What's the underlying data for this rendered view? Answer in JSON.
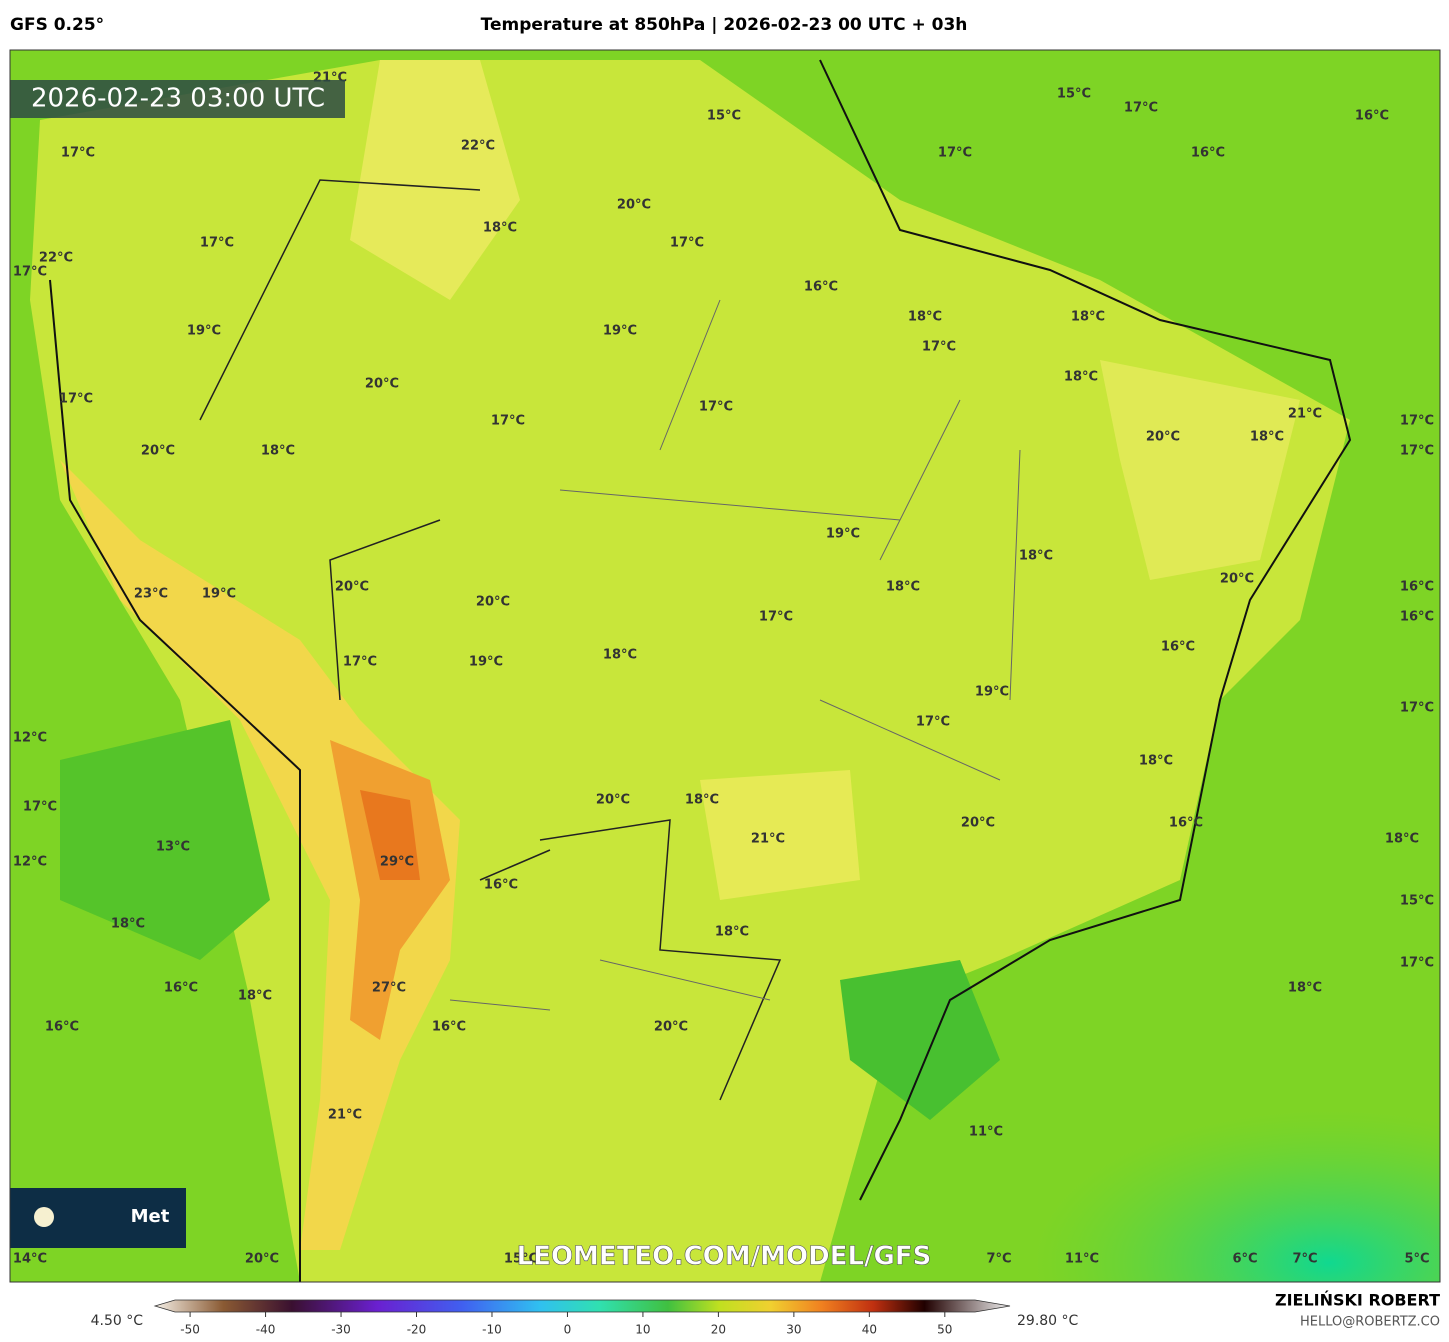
{
  "header": {
    "model": "GFS 0.25°",
    "title": "Temperature at 850hPa | 2026-02-23 00 UTC + 03h"
  },
  "timestamp": "2026-02-23 03:00 UTC",
  "map_labels": [
    "21°C",
    "22°C",
    "15°C",
    "15°C",
    "17°C",
    "16°C",
    "17°C",
    "17°C",
    "16°C",
    "20°C",
    "18°C",
    "17°C",
    "17°C",
    "22°C",
    "17°C",
    "16°C",
    "18°C",
    "18°C",
    "19°C",
    "19°C",
    "17°C",
    "18°C",
    "20°C",
    "17°C",
    "17°C",
    "21°C",
    "17°C",
    "17°C",
    "20°C",
    "18°C",
    "18°C",
    "20°C",
    "17°C",
    "19°C",
    "18°C",
    "20°C",
    "20°C",
    "18°C",
    "16°C",
    "23°C",
    "19°C",
    "20°C",
    "17°C",
    "16°C",
    "18°C",
    "16°C",
    "17°C",
    "19°C",
    "19°C",
    "17°C",
    "17°C",
    "12°C",
    "18°C",
    "20°C",
    "18°C",
    "17°C",
    "21°C",
    "20°C",
    "16°C",
    "18°C",
    "13°C",
    "29°C",
    "12°C",
    "16°C",
    "15°C",
    "18°C",
    "18°C",
    "17°C",
    "16°C",
    "18°C",
    "27°C",
    "18°C",
    "16°C",
    "16°C",
    "20°C",
    "21°C",
    "11°C",
    "14°C",
    "20°C",
    "15°C",
    "7°C",
    "11°C",
    "6°C",
    "7°C",
    "5°C"
  ],
  "watermark": "LEOMETEO.COM/MODEL/GFS",
  "logo_text": "Met",
  "colorbar": {
    "min_label": "4.50 °C",
    "max_label": "29.80 °C",
    "lim": [
      -52,
      54
    ],
    "ticks": [
      -50,
      -40,
      -30,
      -20,
      -10,
      0,
      10,
      20,
      30,
      40,
      50
    ]
  },
  "footer": {
    "author": "ZIELIŃSKI ROBERT",
    "email": "HELLO@ROBERTZ.CO"
  }
}
